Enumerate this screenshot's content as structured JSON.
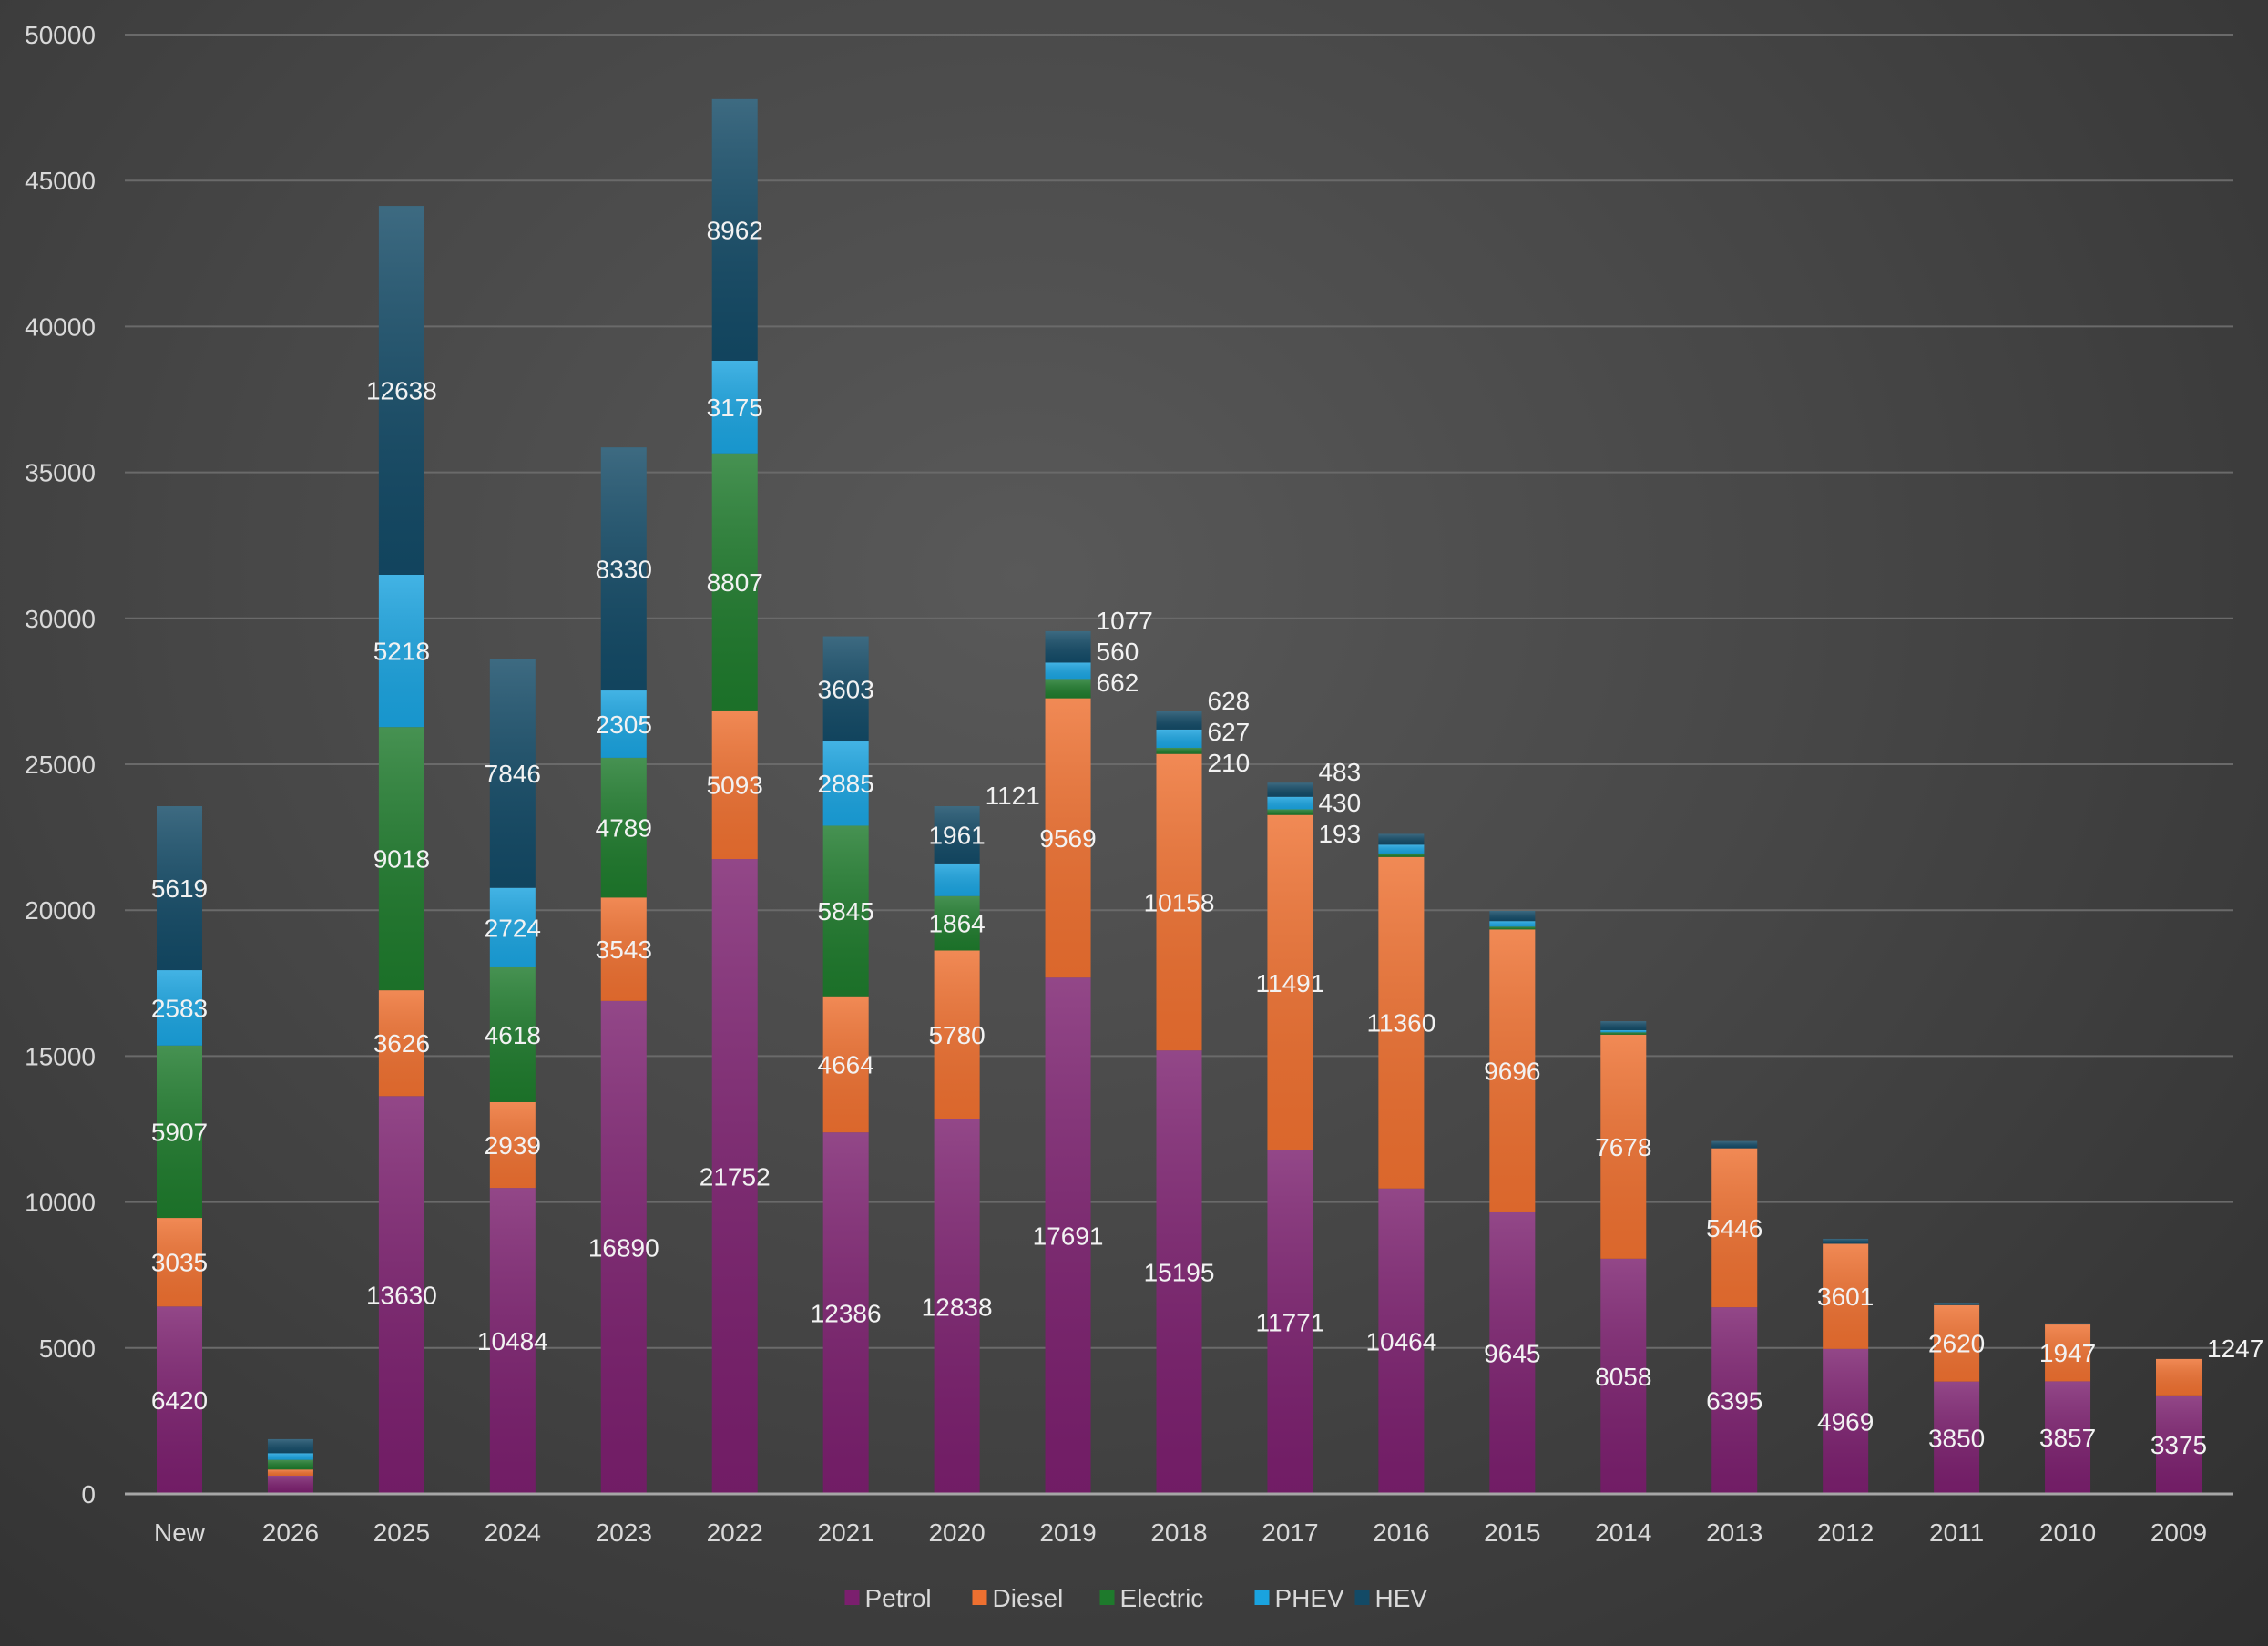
{
  "chart_data": {
    "type": "bar",
    "stacked": true,
    "title": "",
    "xlabel": "",
    "ylabel": "",
    "ylim": [
      0,
      50000
    ],
    "yticks": [
      0,
      5000,
      10000,
      15000,
      20000,
      25000,
      30000,
      35000,
      40000,
      45000,
      50000
    ],
    "grid": true,
    "legend_position": "bottom",
    "categories": [
      "New",
      "2026",
      "2025",
      "2024",
      "2023",
      "2022",
      "2021",
      "2020",
      "2019",
      "2018",
      "2017",
      "2016",
      "2015",
      "2014",
      "2013",
      "2012",
      "2011",
      "2010",
      "2009"
    ],
    "series": [
      {
        "name": "Petrol",
        "color": "#7b1f6e",
        "values": [
          6420,
          625,
          13630,
          10484,
          16890,
          21752,
          12386,
          12838,
          17691,
          15195,
          11771,
          10464,
          9645,
          8058,
          6395,
          4969,
          3850,
          3857,
          3375
        ],
        "labeled": [
          true,
          false,
          true,
          true,
          true,
          true,
          true,
          true,
          true,
          true,
          true,
          true,
          true,
          true,
          true,
          true,
          true,
          true,
          true
        ]
      },
      {
        "name": "Diesel",
        "color": "#ee7030",
        "values": [
          3035,
          210,
          3626,
          2939,
          3543,
          5093,
          4664,
          5780,
          9569,
          10158,
          11491,
          11360,
          9696,
          7678,
          5446,
          3601,
          2620,
          1947,
          1247
        ],
        "labeled": [
          true,
          false,
          true,
          true,
          true,
          true,
          true,
          true,
          true,
          true,
          true,
          true,
          true,
          true,
          true,
          true,
          true,
          true,
          true
        ]
      },
      {
        "name": "Electric",
        "color": "#1e7a2c",
        "values": [
          5907,
          330,
          9018,
          4618,
          4789,
          8807,
          5845,
          1864,
          662,
          210,
          193,
          120,
          95,
          80,
          0,
          0,
          0,
          0,
          0
        ],
        "labeled": [
          true,
          false,
          true,
          true,
          true,
          true,
          true,
          true,
          true,
          true,
          true,
          false,
          false,
          false,
          false,
          false,
          false,
          false,
          false
        ]
      },
      {
        "name": "PHEV",
        "color": "#1aa3df",
        "values": [
          2583,
          230,
          5218,
          2724,
          2305,
          3175,
          2885,
          1121,
          560,
          627,
          430,
          300,
          190,
          70,
          0,
          0,
          0,
          0,
          0
        ],
        "labeled": [
          true,
          false,
          true,
          true,
          true,
          true,
          true,
          true,
          true,
          true,
          true,
          false,
          false,
          false,
          false,
          false,
          false,
          false,
          false
        ]
      },
      {
        "name": "HEV",
        "color": "#134a66",
        "values": [
          5619,
          480,
          12638,
          7846,
          8330,
          8962,
          3603,
          1961,
          1077,
          628,
          483,
          370,
          350,
          310,
          250,
          170,
          80,
          40,
          0
        ],
        "labeled": [
          true,
          false,
          true,
          true,
          true,
          true,
          true,
          true,
          true,
          true,
          true,
          false,
          false,
          false,
          false,
          false,
          false,
          false,
          false
        ]
      }
    ]
  }
}
